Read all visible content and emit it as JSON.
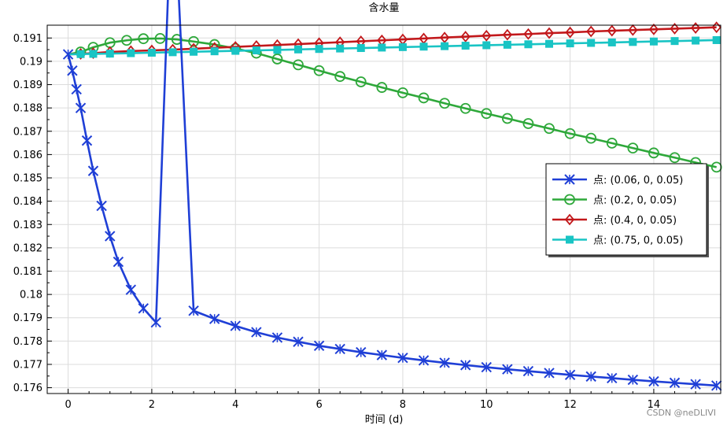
{
  "chart_data": {
    "type": "line",
    "title": "含水量",
    "xlabel": "时间 (d)",
    "ylabel": "",
    "xlim": [
      -0.5,
      15.6
    ],
    "ylim": [
      0.17575,
      0.19155
    ],
    "grid": true,
    "legend_position": "right",
    "xticks": [
      0,
      2,
      4,
      6,
      8,
      10,
      12,
      14
    ],
    "yticks": [
      0.176,
      0.177,
      0.178,
      0.179,
      0.18,
      0.181,
      0.182,
      0.183,
      0.184,
      0.185,
      0.186,
      0.187,
      0.188,
      0.189,
      0.19,
      0.191
    ],
    "series": [
      {
        "name": "点: (0.06, 0, 0.05)",
        "color": "#1f3fd6",
        "marker": "x",
        "x": [
          0,
          0.1,
          0.2,
          0.3,
          0.45,
          0.6,
          0.8,
          1.0,
          1.2,
          1.5,
          1.8,
          2.1,
          2.5,
          3.0,
          3.5,
          4.0,
          4.5,
          5.0,
          5.5,
          6.0,
          6.5,
          7.0,
          7.5,
          8.0,
          8.5,
          9.0,
          9.5,
          10.0,
          10.5,
          11.0,
          11.5,
          12.0,
          12.5,
          13.0,
          13.5,
          14.0,
          14.5,
          15.0,
          15.5
        ],
        "y": [
          0.1903,
          0.1896,
          0.1888,
          0.188,
          0.1866,
          0.1853,
          0.1838,
          0.1825,
          0.1814,
          0.1802,
          0.1794,
          0.1788,
          0.1983,
          0.1793,
          0.17895,
          0.17865,
          0.17838,
          0.17815,
          0.17797,
          0.1778,
          0.17766,
          0.17752,
          0.1774,
          0.17728,
          0.17717,
          0.17707,
          0.17697,
          0.17688,
          0.17679,
          0.17671,
          0.17663,
          0.17655,
          0.17648,
          0.17641,
          0.17634,
          0.17627,
          0.17621,
          0.17615,
          0.17609
        ]
      },
      {
        "name": "点: (0.2, 0, 0.05)",
        "color": "#2ea83a",
        "marker": "circle",
        "x": [
          0,
          0.3,
          0.6,
          1.0,
          1.4,
          1.8,
          2.2,
          2.6,
          3.0,
          3.5,
          4.0,
          4.5,
          5.0,
          5.5,
          6.0,
          6.5,
          7.0,
          7.5,
          8.0,
          8.5,
          9.0,
          9.5,
          10.0,
          10.5,
          11.0,
          11.5,
          12.0,
          12.5,
          13.0,
          13.5,
          14.0,
          14.5,
          15.0,
          15.5
        ],
        "y": [
          0.1903,
          0.1904,
          0.1906,
          0.1908,
          0.1909,
          0.19097,
          0.19098,
          0.19094,
          0.19085,
          0.19072,
          0.19055,
          0.19035,
          0.1901,
          0.18985,
          0.1896,
          0.18935,
          0.18912,
          0.18888,
          0.18865,
          0.18843,
          0.1882,
          0.18798,
          0.18776,
          0.18755,
          0.18733,
          0.18712,
          0.1869,
          0.1867,
          0.18649,
          0.18628,
          0.18607,
          0.18587,
          0.18566,
          0.18546
        ]
      },
      {
        "name": "点: (0.4, 0, 0.05)",
        "color": "#c2181b",
        "marker": "diamond",
        "x": [
          0,
          0.3,
          0.6,
          1.0,
          1.5,
          2.0,
          2.5,
          3.0,
          3.5,
          4.0,
          4.5,
          5.0,
          5.5,
          6.0,
          6.5,
          7.0,
          7.5,
          8.0,
          8.5,
          9.0,
          9.5,
          10.0,
          10.5,
          11.0,
          11.5,
          12.0,
          12.5,
          13.0,
          13.5,
          14.0,
          14.5,
          15.0,
          15.5
        ],
        "y": [
          0.1903,
          0.19032,
          0.19035,
          0.1904,
          0.19044,
          0.19047,
          0.1905,
          0.19054,
          0.19058,
          0.19062,
          0.19066,
          0.1907,
          0.19074,
          0.19078,
          0.19082,
          0.19086,
          0.1909,
          0.19094,
          0.19098,
          0.19102,
          0.19106,
          0.1911,
          0.19114,
          0.19117,
          0.19121,
          0.19124,
          0.19128,
          0.19131,
          0.19134,
          0.19137,
          0.1914,
          0.19143,
          0.19146
        ]
      },
      {
        "name": "点: (0.75, 0, 0.05)",
        "color": "#19c4c4",
        "marker": "square",
        "x": [
          0,
          0.3,
          0.6,
          1.0,
          1.5,
          2.0,
          2.5,
          3.0,
          3.5,
          4.0,
          4.5,
          5.0,
          5.5,
          6.0,
          6.5,
          7.0,
          7.5,
          8.0,
          8.5,
          9.0,
          9.5,
          10.0,
          10.5,
          11.0,
          11.5,
          12.0,
          12.5,
          13.0,
          13.5,
          14.0,
          14.5,
          15.0,
          15.5
        ],
        "y": [
          0.1903,
          0.19031,
          0.19032,
          0.19033,
          0.19035,
          0.19037,
          0.19039,
          0.19041,
          0.19043,
          0.19045,
          0.19047,
          0.19049,
          0.19051,
          0.19053,
          0.19055,
          0.19057,
          0.19059,
          0.19061,
          0.19063,
          0.19065,
          0.19067,
          0.19069,
          0.19071,
          0.19073,
          0.19075,
          0.19077,
          0.19079,
          0.19081,
          0.19083,
          0.19085,
          0.19087,
          0.19089,
          0.19091
        ]
      }
    ]
  },
  "watermark": "CSDN @neDLIVI"
}
